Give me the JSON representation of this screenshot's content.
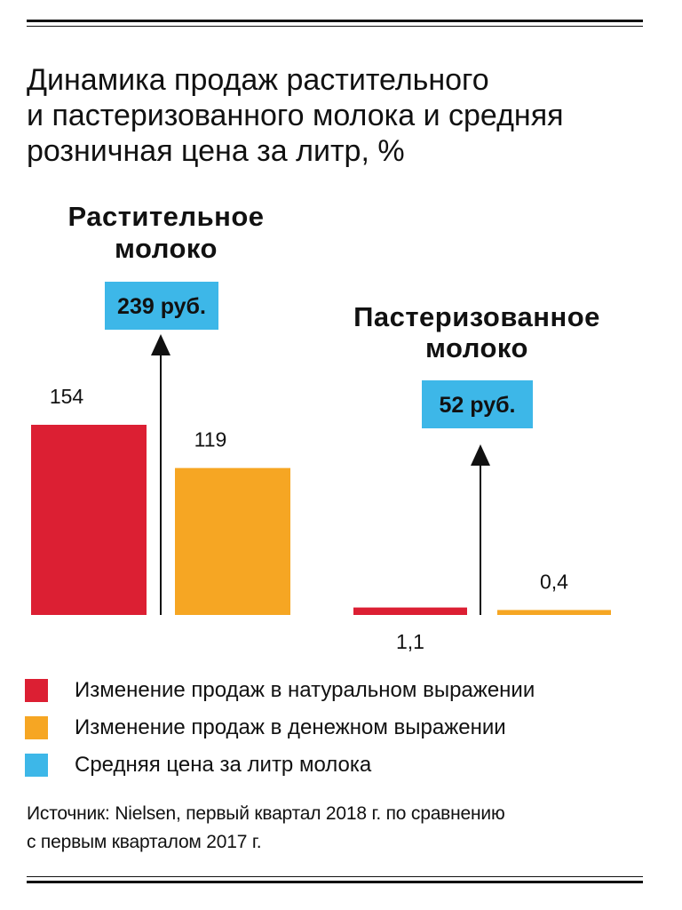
{
  "title_lines": [
    "Динамика продаж растительного",
    "и пастеризованного молока и средняя",
    "розничная цена за литр, %"
  ],
  "colors": {
    "volume": "#dc1f33",
    "value": "#f6a623",
    "price": "#3db7e8",
    "text": "#111111"
  },
  "chart_data": {
    "type": "bar",
    "categories": [
      [
        "Растительное",
        "молоко"
      ],
      [
        "Пастеризованное",
        "молоко"
      ]
    ],
    "series": [
      {
        "name": "Изменение продаж в натуральном выражении",
        "color": "#dc1f33",
        "values": [
          154,
          1.1
        ],
        "labels": [
          "154",
          "1,1"
        ]
      },
      {
        "name": "Изменение продаж в денежном выражении",
        "color": "#f6a623",
        "values": [
          119,
          0.4
        ],
        "labels": [
          "119",
          "0,4"
        ]
      }
    ],
    "price_callouts": {
      "name": "Средняя цена за литр молока",
      "color": "#3db7e8",
      "labels": [
        "239 руб.",
        "52 руб."
      ],
      "values": [
        239,
        52
      ]
    },
    "ylim": [
      0,
      160
    ],
    "grid": false,
    "legend": "bottom",
    "xlabel": "",
    "ylabel": ""
  },
  "legend": [
    {
      "label": "Изменение продаж в натуральном выражении",
      "color": "#dc1f33"
    },
    {
      "label": "Изменение продаж в денежном выражении",
      "color": "#f6a623"
    },
    {
      "label": "Средняя цена за литр молока",
      "color": "#3db7e8"
    }
  ],
  "source_lines": [
    "Источник: Nielsen, первый квартал 2018 г. по сравнению",
    "с первым кварталом 2017 г."
  ]
}
